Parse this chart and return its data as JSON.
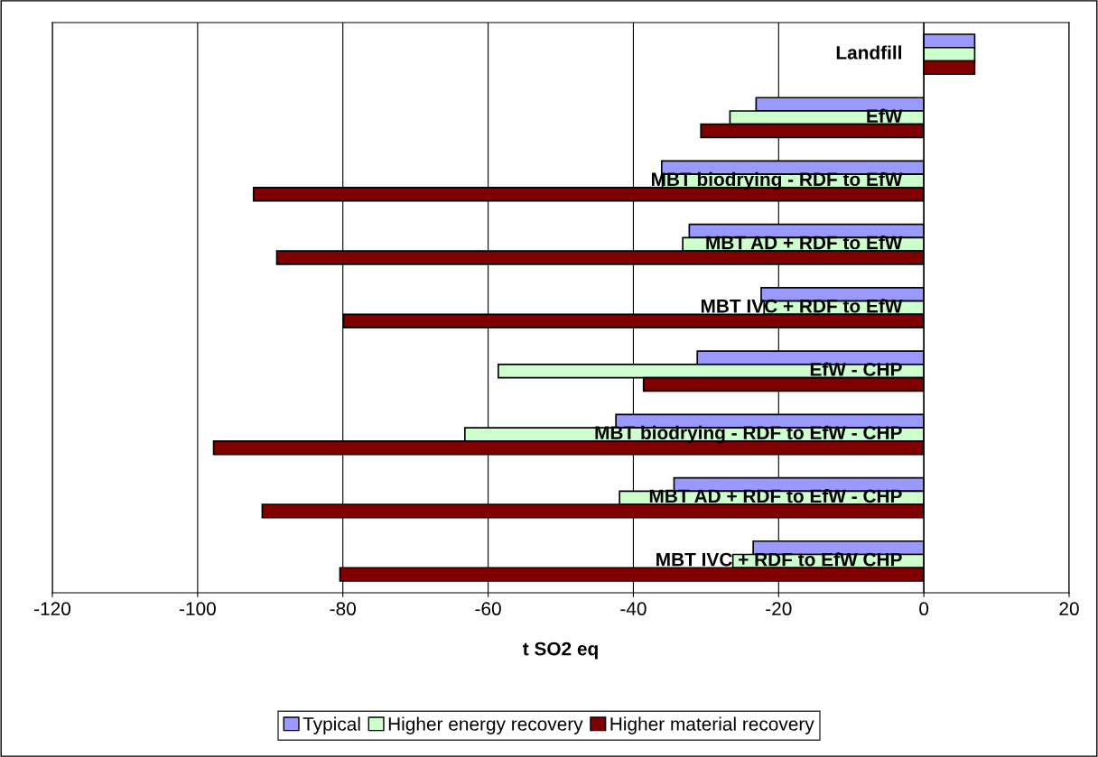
{
  "chart_data": {
    "type": "bar",
    "orientation": "horizontal",
    "xlabel": "t SO2 eq",
    "categories": [
      "Landfill",
      "EfW",
      "MBT biodrying - RDF to EfW",
      "MBT AD + RDF to EfW",
      "MBT IVC + RDF to EfW",
      "EfW - CHP",
      "MBT biodrying - RDF to EfW - CHP",
      "MBT AD + RDF to EfW - CHP",
      "MBT IVC + RDF to EfW CHP"
    ],
    "series": [
      {
        "name": "Typical",
        "color": "#9999ff",
        "values": [
          7,
          -23.1,
          -36.1,
          -32.3,
          -22.4,
          -31.2,
          -42.4,
          -34.4,
          -23.5
        ]
      },
      {
        "name": "Higher energy recovery",
        "color": "#ccffcc",
        "values": [
          7,
          -26.7,
          -36,
          -33.2,
          -22,
          -58.6,
          -63.2,
          -41.9,
          -26.3
        ]
      },
      {
        "name": "Higher material recovery",
        "color": "#800000",
        "values": [
          7,
          -30.7,
          -92.3,
          -89.1,
          -79.9,
          -38.6,
          -97.8,
          -91.1,
          -80.4
        ]
      }
    ],
    "xlim": [
      -120,
      20
    ],
    "xticks": [
      -120,
      -100,
      -80,
      -60,
      -40,
      -20,
      0,
      20
    ],
    "grid": "x",
    "legend": "bottom"
  }
}
